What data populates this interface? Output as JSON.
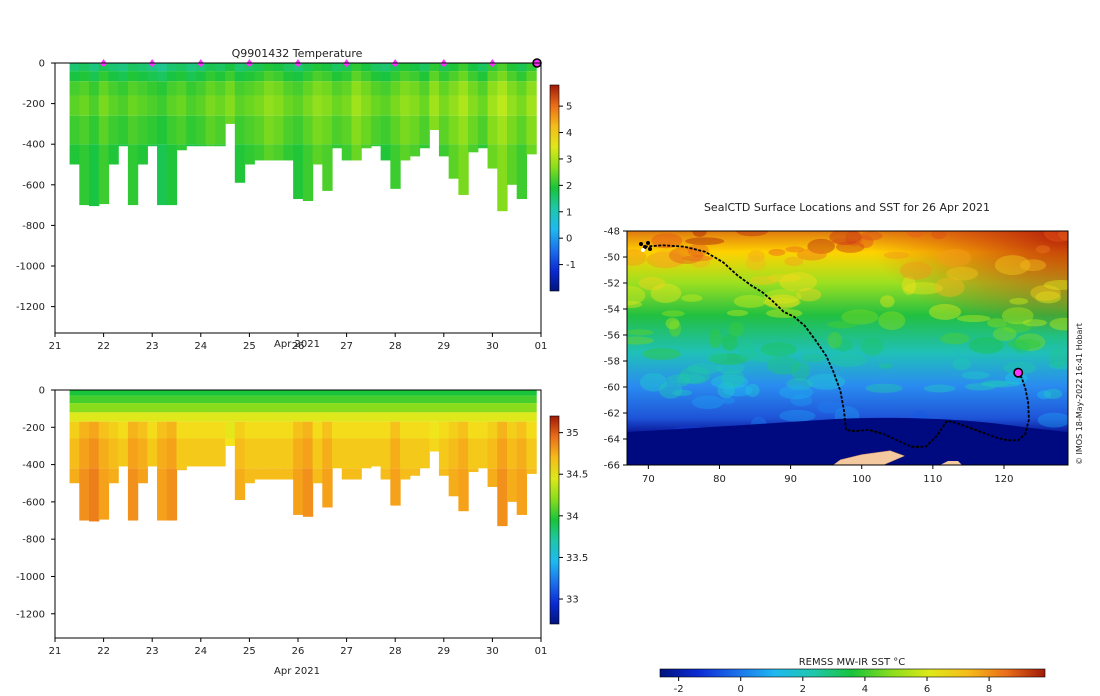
{
  "chart_data": [
    {
      "type": "heatmap",
      "title": "Q9901432  Temperature",
      "xlabel": "Apr 2021",
      "ylabel": "",
      "x_ticks": [
        "21",
        "22",
        "23",
        "24",
        "25",
        "26",
        "27",
        "28",
        "29",
        "30",
        "01"
      ],
      "x_range": [
        21,
        31
      ],
      "y_ticks": [
        0,
        -200,
        -400,
        -600,
        -800,
        -1000,
        -1200
      ],
      "ylim": [
        -1330,
        0
      ],
      "colorbar_ticks": [
        5,
        4,
        3,
        2,
        1,
        0,
        -1
      ],
      "colorbar_range": [
        -2,
        5.8
      ],
      "surface_markers_x": [
        22,
        23,
        24,
        25,
        26,
        27,
        28,
        29,
        30
      ],
      "latest_profile_x": 31,
      "profile_days": [
        21.4,
        21.6,
        21.8,
        22.0,
        22.2,
        22.4,
        22.6,
        22.8,
        23.0,
        23.2,
        23.4,
        23.6,
        23.8,
        24.0,
        24.2,
        24.4,
        24.6,
        24.8,
        25.0,
        25.2,
        25.4,
        25.6,
        25.8,
        26.0,
        26.2,
        26.4,
        26.6,
        26.8,
        27.0,
        27.2,
        27.4,
        27.6,
        27.8,
        28.0,
        28.2,
        28.4,
        28.6,
        28.8,
        29.0,
        29.2,
        29.4,
        29.6,
        29.8,
        30.0,
        30.2,
        30.4,
        30.6,
        30.8
      ],
      "profile_max_depth": [
        -500,
        -700,
        -705,
        -695,
        -500,
        -410,
        -700,
        -500,
        -410,
        -700,
        -700,
        -430,
        -410,
        -410,
        -410,
        -410,
        -300,
        -590,
        -500,
        -480,
        -480,
        -480,
        -480,
        -670,
        -680,
        -500,
        -630,
        -420,
        -480,
        -480,
        -420,
        -410,
        -480,
        -620,
        -480,
        -460,
        -420,
        -330,
        -460,
        -570,
        -650,
        -440,
        -420,
        -520,
        -730,
        -600,
        -670,
        -450
      ],
      "mean_temperature": [
        2.1,
        2.2,
        2.0,
        2.3,
        2.1,
        2.0,
        2.2,
        2.1,
        2.0,
        1.9,
        2.1,
        2.2,
        2.0,
        2.1,
        2.3,
        2.2,
        2.4,
        2.1,
        2.2,
        2.3,
        2.5,
        2.4,
        2.2,
        2.1,
        2.3,
        2.5,
        2.4,
        2.2,
        2.3,
        2.6,
        2.4,
        2.2,
        2.1,
        2.3,
        2.5,
        2.4,
        2.2,
        2.6,
        2.3,
        2.5,
        2.7,
        2.4,
        2.2,
        2.6,
        2.8,
        2.5,
        2.3,
        2.6
      ]
    },
    {
      "type": "heatmap",
      "title": "",
      "xlabel": "Apr 2021",
      "ylabel": "",
      "x_ticks": [
        "21",
        "22",
        "23",
        "24",
        "25",
        "26",
        "27",
        "28",
        "29",
        "30",
        "01"
      ],
      "x_range": [
        21,
        31
      ],
      "y_ticks": [
        0,
        -200,
        -400,
        -600,
        -800,
        -1000,
        -1200
      ],
      "ylim": [
        -1330,
        0
      ],
      "colorbar_ticks": [
        35,
        34.5,
        34,
        33.5,
        33
      ],
      "colorbar_range": [
        32.7,
        35.2
      ],
      "deep_salinity": [
        34.75,
        34.85,
        34.9,
        34.8,
        34.75,
        34.7,
        34.85,
        34.8,
        34.7,
        34.8,
        34.85,
        34.7,
        34.7,
        34.7,
        34.7,
        34.7,
        34.6,
        34.75,
        34.7,
        34.7,
        34.7,
        34.7,
        34.7,
        34.8,
        34.85,
        34.7,
        34.8,
        34.7,
        34.7,
        34.7,
        34.7,
        34.7,
        34.7,
        34.8,
        34.7,
        34.7,
        34.7,
        34.65,
        34.7,
        34.75,
        34.8,
        34.7,
        34.7,
        34.75,
        34.85,
        34.75,
        34.8,
        34.7
      ]
    },
    {
      "type": "heatmap",
      "title": "SealCTD Surface Locations and SST for 26 Apr 2021",
      "xlabel": "",
      "ylabel": "",
      "x_ticks": [
        70,
        80,
        90,
        100,
        110,
        120
      ],
      "x_range": [
        67,
        129
      ],
      "y_ticks": [
        -48,
        -50,
        -52,
        -54,
        -56,
        -58,
        -60,
        -62,
        -64,
        -66
      ],
      "ylim": [
        -66,
        -48
      ],
      "colorbar_title": "REMSS MW-IR SST °C",
      "colorbar_ticks": [
        -2,
        0,
        2,
        4,
        6,
        8
      ],
      "colorbar_range": [
        -2.6,
        9.8
      ],
      "track": [
        [
          69.5,
          -49.2
        ],
        [
          72,
          -49.1
        ],
        [
          75,
          -49.2
        ],
        [
          78,
          -49.6
        ],
        [
          80.5,
          -50.4
        ],
        [
          82.5,
          -51.4
        ],
        [
          84.5,
          -52.2
        ],
        [
          86,
          -52.7
        ],
        [
          87.5,
          -53.4
        ],
        [
          89,
          -54.2
        ],
        [
          90.5,
          -54.6
        ],
        [
          92,
          -55.3
        ],
        [
          93.5,
          -56.4
        ],
        [
          95,
          -57.6
        ],
        [
          96,
          -58.8
        ],
        [
          97,
          -60.3
        ],
        [
          97.5,
          -61.8
        ],
        [
          97.8,
          -63.3
        ],
        [
          99,
          -63.4
        ],
        [
          101,
          -63.3
        ],
        [
          103,
          -63.6
        ],
        [
          105,
          -64.1
        ],
        [
          107,
          -64.6
        ],
        [
          109,
          -64.6
        ],
        [
          110.5,
          -63.8
        ],
        [
          112,
          -62.6
        ],
        [
          113.5,
          -62.8
        ],
        [
          115.5,
          -63.2
        ],
        [
          117,
          -63.5
        ],
        [
          119,
          -63.9
        ],
        [
          120.5,
          -64.1
        ],
        [
          122,
          -64.1
        ],
        [
          123,
          -63.6
        ],
        [
          123.5,
          -62.5
        ],
        [
          123.4,
          -61.2
        ],
        [
          123,
          -60.1
        ],
        [
          122.5,
          -59.3
        ],
        [
          122,
          -59
        ]
      ],
      "latest_position": [
        122,
        -58.9
      ],
      "land": [
        [
          97,
          -65.6
        ],
        [
          100,
          -65.2
        ],
        [
          104,
          -64.9
        ],
        [
          106,
          -65.3
        ],
        [
          103,
          -66
        ],
        [
          96,
          -66
        ]
      ]
    }
  ],
  "credit": "© IMOS 18-May-2022 16:41 Hobart",
  "colors": {
    "marker": "#ff33ff",
    "track": "#000000",
    "land": "#f5c9a0",
    "axis": "#000000"
  }
}
